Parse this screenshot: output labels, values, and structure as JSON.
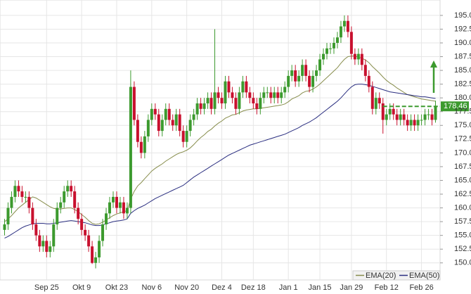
{
  "chart_data": {
    "type": "candlestick",
    "categories": [
      null,
      null,
      null,
      null,
      null,
      null,
      null,
      null,
      null,
      null,
      null,
      null,
      "Sep 25",
      null,
      null,
      null,
      null,
      null,
      null,
      null,
      null,
      null,
      "Okt 9",
      null,
      null,
      null,
      null,
      null,
      null,
      null,
      null,
      null,
      "Okt 23",
      null,
      null,
      null,
      null,
      null,
      null,
      null,
      null,
      null,
      "Nov 6",
      null,
      null,
      null,
      null,
      null,
      null,
      null,
      null,
      null,
      "Nov 20",
      null,
      null,
      null,
      null,
      null,
      null,
      null,
      null,
      null,
      "Dez 4",
      null,
      null,
      null,
      null,
      null,
      null,
      null,
      null,
      "Dez 18",
      null,
      null,
      null,
      null,
      null,
      null,
      null,
      null,
      null,
      "Jan 1",
      null,
      null,
      null,
      null,
      null,
      null,
      null,
      null,
      "Jan 15",
      null,
      null,
      null,
      null,
      null,
      null,
      null,
      null,
      "Jan 29",
      null,
      null,
      null,
      null,
      null,
      null,
      null,
      null,
      null,
      "Feb 12",
      null,
      null,
      null,
      null,
      null,
      null,
      null,
      null,
      null,
      "Feb 26",
      null,
      null,
      null,
      null
    ],
    "open": [
      156,
      157,
      160,
      162,
      164,
      163,
      162,
      162,
      160,
      157,
      155,
      153,
      154,
      152,
      153,
      157,
      160,
      161,
      163,
      164,
      163,
      160,
      158,
      156,
      155,
      153,
      150,
      151,
      154,
      157,
      159,
      161,
      162,
      160,
      161,
      159,
      160,
      182,
      176,
      172,
      170,
      173,
      176,
      178,
      177,
      174,
      176,
      178,
      176,
      175,
      177,
      174,
      172,
      174,
      176,
      177,
      179,
      178,
      179,
      180,
      178,
      181,
      180,
      179,
      183,
      181,
      180,
      178,
      181,
      183,
      181,
      180,
      179,
      178,
      180,
      181,
      181,
      180,
      181,
      180,
      181,
      182,
      184,
      185,
      183,
      184,
      186,
      184,
      182,
      184,
      185,
      187,
      188,
      189,
      189,
      190,
      191,
      193,
      194,
      192,
      188,
      187,
      188,
      186,
      184,
      182,
      178,
      180,
      179,
      176,
      177,
      178,
      177,
      176,
      177,
      176,
      175,
      176,
      175,
      176,
      176,
      177,
      177,
      176
    ],
    "high": [
      158,
      161,
      163,
      165,
      165,
      164,
      163,
      163,
      161,
      158,
      156,
      155,
      155,
      154,
      158,
      161,
      162,
      164,
      165,
      165,
      164,
      161,
      159,
      157,
      156,
      154,
      152,
      155,
      158,
      160,
      162,
      163,
      163,
      162,
      162,
      161,
      185,
      183,
      177,
      173,
      174,
      177,
      179,
      179,
      178,
      177,
      179,
      179,
      177,
      178,
      178,
      175,
      175,
      177,
      178,
      180,
      180,
      180,
      181,
      181,
      192.5,
      182,
      181,
      184,
      184,
      182,
      181,
      182,
      184,
      184,
      182,
      181,
      180,
      181,
      182,
      182,
      182,
      182,
      182,
      182,
      183,
      185,
      186,
      186,
      185,
      187,
      187,
      185,
      185,
      186,
      188,
      189,
      190,
      190,
      191,
      192,
      194,
      195,
      195,
      193,
      189,
      189,
      189,
      187,
      185,
      183,
      181,
      181,
      180,
      178,
      179,
      179,
      178,
      178,
      178,
      177,
      177,
      177,
      177,
      177,
      178,
      178,
      178,
      179.5
    ],
    "low": [
      155,
      156,
      159,
      161,
      162,
      161,
      161,
      159,
      156,
      154,
      152,
      152,
      151,
      151,
      152,
      156,
      159,
      160,
      162,
      162,
      159,
      157,
      155,
      154,
      152,
      149.8,
      149,
      150,
      153,
      156,
      158,
      160,
      159,
      159,
      158,
      158,
      159,
      175,
      171,
      169,
      169,
      172,
      175,
      176,
      173,
      173,
      175,
      175,
      174,
      174,
      173,
      171,
      171,
      173,
      175,
      176,
      177,
      177,
      178,
      177,
      177,
      179,
      178,
      178,
      180,
      179,
      177,
      177,
      180,
      180,
      179,
      178,
      177,
      177,
      179,
      180,
      179,
      179,
      179,
      179,
      180,
      181,
      183,
      182,
      182,
      183,
      183,
      181,
      181,
      183,
      184,
      186,
      187,
      188,
      188,
      189,
      190,
      192,
      191,
      187,
      186,
      186,
      185,
      183,
      181,
      177,
      177,
      178,
      173.5,
      175,
      176,
      176,
      175,
      175,
      175,
      174,
      174,
      174,
      174,
      175,
      175,
      176,
      175,
      175.5
    ],
    "close": [
      157,
      160,
      162,
      164,
      163,
      162,
      162,
      160,
      157,
      155,
      153,
      154,
      152,
      153,
      157,
      160,
      161,
      163,
      164,
      163,
      160,
      158,
      156,
      155,
      153,
      150,
      151,
      154,
      157,
      159,
      161,
      162,
      160,
      161,
      159,
      160,
      182,
      176,
      172,
      170,
      173,
      176,
      178,
      177,
      174,
      176,
      178,
      176,
      175,
      177,
      174,
      172,
      174,
      176,
      177,
      179,
      178,
      179,
      180,
      178,
      181,
      180,
      179,
      183,
      181,
      180,
      178,
      181,
      183,
      181,
      180,
      179,
      178,
      180,
      181,
      181,
      180,
      181,
      180,
      181,
      182,
      184,
      185,
      183,
      184,
      186,
      184,
      182,
      184,
      185,
      187,
      188,
      189,
      189,
      190,
      191,
      193,
      194,
      192,
      188,
      187,
      188,
      186,
      184,
      182,
      178,
      180,
      179,
      176,
      177,
      178,
      177,
      176,
      177,
      176,
      175,
      176,
      175,
      176,
      176,
      177,
      177,
      176,
      178.46
    ],
    "up_color": "#3c9a2e",
    "down_color": "#c8102e",
    "series": [
      {
        "name": "EMA(20)",
        "color": "#878d4c",
        "values": [
          157.5,
          158,
          158.6,
          159.3,
          160,
          160.5,
          161,
          161.5,
          162,
          161.8,
          161.4,
          161,
          160.6,
          160.2,
          159.9,
          159.8,
          159.8,
          159.9,
          160,
          160,
          159.7,
          159.3,
          158.8,
          158.3,
          157.7,
          157.2,
          157,
          157.1,
          157.4,
          157.8,
          158.2,
          158.6,
          158.9,
          159.1,
          159.3,
          159.5,
          161.6,
          163,
          164,
          164.6,
          165.3,
          166,
          166.7,
          167.2,
          167.6,
          168,
          168.5,
          168.9,
          169.3,
          169.7,
          170,
          170.2,
          170.5,
          170.9,
          171.5,
          172.2,
          172.8,
          173.3,
          173.9,
          174.3,
          174.9,
          175.4,
          175.8,
          176.3,
          176.6,
          176.9,
          177,
          177.3,
          177.6,
          177.8,
          177.9,
          178,
          178,
          178.1,
          178.2,
          178.3,
          178.4,
          178.5,
          178.6,
          178.7,
          178.9,
          179.3,
          179.8,
          180.1,
          180.4,
          180.9,
          181.2,
          181.3,
          181.6,
          182,
          182.5,
          183.1,
          183.7,
          184.3,
          184.9,
          185.5,
          186.3,
          187,
          187.5,
          187.6,
          187.6,
          187.4,
          187.2,
          186.9,
          186.4,
          185.7,
          185.1,
          184.5,
          183.8,
          183.2,
          182.7,
          182.3,
          181.8,
          181.4,
          181,
          180.6,
          180.4,
          180.2,
          180,
          179.8,
          179.7,
          179.6,
          179.5,
          179.4
        ]
      },
      {
        "name": "EMA(50)",
        "color": "#2a2e80",
        "values": [
          154.5,
          154.8,
          155.2,
          155.6,
          156,
          156.4,
          156.7,
          156.9,
          157.1,
          157.2,
          157.2,
          157.2,
          157.1,
          157.1,
          157.2,
          157.3,
          157.4,
          157.5,
          157.6,
          157.7,
          157.6,
          157.5,
          157.4,
          157.3,
          157.1,
          156.9,
          156.8,
          156.8,
          156.9,
          157.1,
          157.3,
          157.5,
          157.6,
          157.7,
          157.8,
          158,
          159,
          159.5,
          159.9,
          160.2,
          160.5,
          160.9,
          161.3,
          161.7,
          162,
          162.3,
          162.6,
          162.9,
          163.2,
          163.5,
          163.8,
          164.1,
          164.6,
          165.1,
          165.6,
          166,
          166.4,
          166.8,
          167.2,
          167.6,
          168,
          168.4,
          168.8,
          169.2,
          169.6,
          169.9,
          170.2,
          170.5,
          170.8,
          171.1,
          171.4,
          171.6,
          171.8,
          172,
          172.2,
          172.4,
          172.6,
          172.8,
          173,
          173.2,
          173.4,
          173.7,
          174,
          174.3,
          174.6,
          175,
          175.3,
          175.6,
          176,
          176.4,
          176.9,
          177.4,
          177.9,
          178.4,
          178.9,
          179.4,
          180,
          180.7,
          181.4,
          182,
          182.4,
          182.5,
          182.5,
          182.4,
          182.3,
          182.1,
          181.9,
          181.7,
          181.5,
          181.3,
          181.1,
          181,
          180.9,
          180.8,
          180.7,
          180.6,
          180.5,
          180.4,
          180.3,
          180.2,
          180.2,
          180.1,
          180,
          179.9
        ]
      }
    ],
    "ylim": [
      146.9,
      197.8
    ],
    "yticks": [
      {
        "value": 150,
        "label": "150.00"
      },
      {
        "value": 152.5,
        "label": "152.50"
      },
      {
        "value": 155,
        "label": "155.00"
      },
      {
        "value": 157.5,
        "label": "157.50"
      },
      {
        "value": 160,
        "label": "160.00"
      },
      {
        "value": 162.5,
        "label": "162.50"
      },
      {
        "value": 165,
        "label": "165.00"
      },
      {
        "value": 167.5,
        "label": "167.50"
      },
      {
        "value": 170,
        "label": "170.00"
      },
      {
        "value": 172.5,
        "label": "172.50"
      },
      {
        "value": 175,
        "label": "175.00"
      },
      {
        "value": 177.5,
        "label": "177.50"
      },
      {
        "value": 180,
        "label": "180.00"
      },
      {
        "value": 182.5,
        "label": "182.50"
      },
      {
        "value": 185,
        "label": "185.00"
      },
      {
        "value": 187.5,
        "label": "187.50"
      },
      {
        "value": 190,
        "label": "190.00"
      },
      {
        "value": 192.5,
        "label": "192.50"
      },
      {
        "value": 195,
        "label": "195.00"
      }
    ],
    "grid": true,
    "last_label": "178.46",
    "last_color": "#3c9a2e",
    "legend": "lower right"
  }
}
